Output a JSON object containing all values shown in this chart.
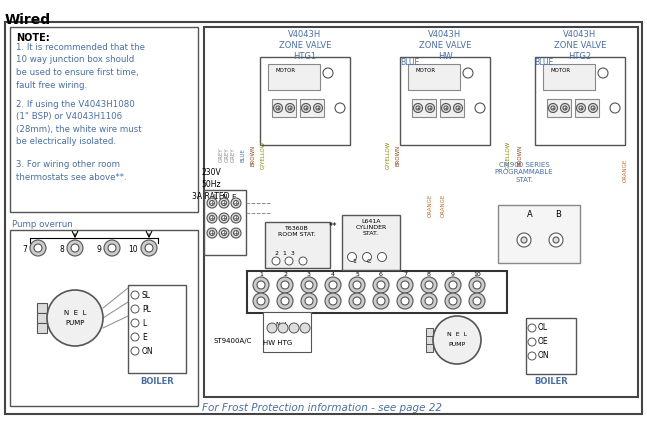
{
  "title": "Wired",
  "bg_color": "#ffffff",
  "blue_color": "#4a6fa5",
  "orange_color": "#c07030",
  "gray_color": "#888888",
  "brown_color": "#8B4513",
  "gyellow_color": "#888800",
  "note_text": "NOTE:",
  "note1": "1. It is recommended that the\n10 way junction box should\nbe used to ensure first time,\nfault free wiring.",
  "note2": "2. If using the V4043H1080\n(1\" BSP) or V4043H1106\n(28mm), the white wire must\nbe electrically isolated.",
  "note3": "3. For wiring other room\nthermostats see above**.",
  "pump_overrun": "Pump overrun",
  "frost_text": "For Frost Protection information - see page 22",
  "zone1_label": "V4043H\nZONE VALVE\nHTG1",
  "zone2_label": "V4043H\nZONE VALVE\nHW",
  "zone3_label": "V4043H\nZONE VALVE\nHTG2",
  "power_label": "230V\n50Hz\n3A RATED",
  "room_stat_label": "T6360B\nROOM STAT.",
  "cyl_stat_label": "L641A\nCYLINDER\nSTAT.",
  "cm900_label": "CM900 SERIES\nPROGRAMMABLE\nSTAT.",
  "st9400_label": "ST9400A/C",
  "hw_htg_label": "HW HTG",
  "boiler_label": "BOILER",
  "pump_label": "PUMP"
}
